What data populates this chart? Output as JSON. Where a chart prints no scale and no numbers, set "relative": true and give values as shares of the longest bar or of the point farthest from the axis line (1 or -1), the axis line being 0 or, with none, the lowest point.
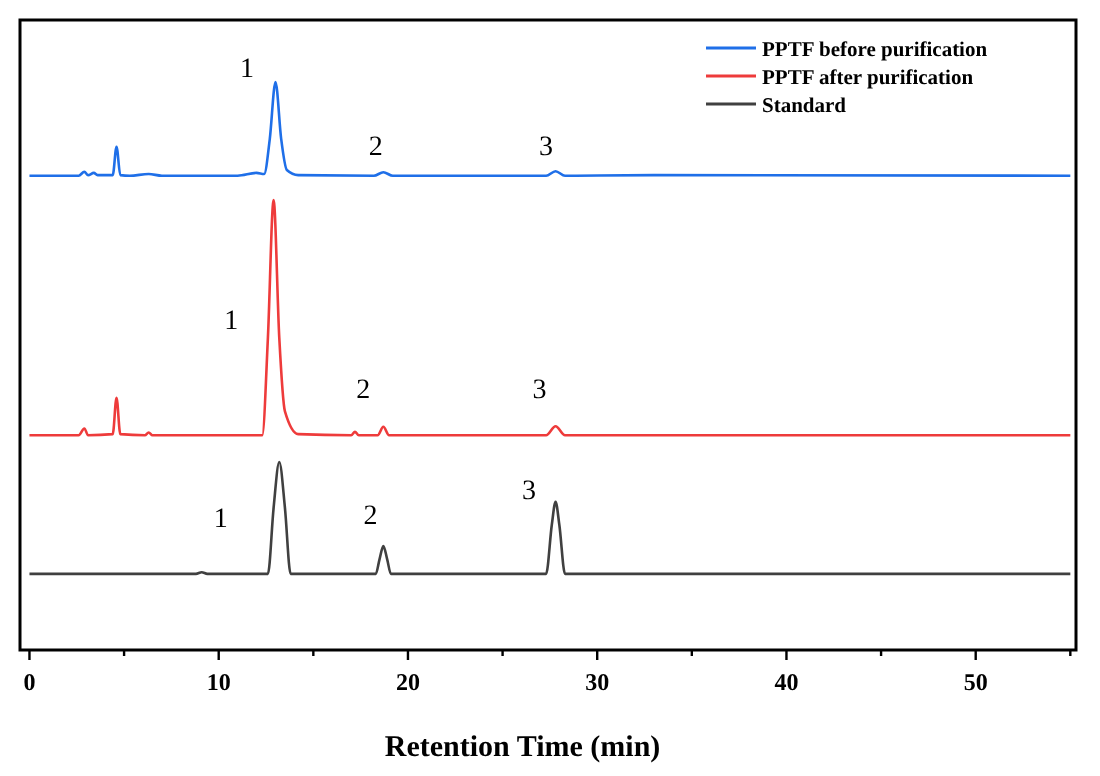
{
  "chart_data": {
    "type": "line",
    "relative": true,
    "xlabel": "Retention Time (min)",
    "xlim": [
      -0.5,
      55.3
    ],
    "xticks": [
      0,
      {
        "value": 5,
        "label": null
      },
      10,
      {
        "value": 15,
        "label": null
      },
      20,
      {
        "value": 25,
        "label": null
      },
      30,
      {
        "value": 35,
        "label": null
      },
      40,
      {
        "value": 45,
        "label": null
      },
      50,
      {
        "value": 55,
        "label": null
      }
    ],
    "tick_labels": "x",
    "legend": "top right",
    "grid": false,
    "marker": "none",
    "line_style": "solid",
    "series": [
      {
        "name": "PPTF before purification",
        "color": "#1f6fe8",
        "x": [
          0,
          2.6,
          2.9,
          3.1,
          3.4,
          3.6,
          3.9,
          4.4,
          4.6,
          4.8,
          5.3,
          6.3,
          7,
          11,
          12,
          12.4,
          12.7,
          13.0,
          13.3,
          13.6,
          14.2,
          18.2,
          18.7,
          19.2,
          22,
          27.3,
          27.8,
          28.3,
          33,
          55
        ],
        "values": [
          0.835,
          0.835,
          0.842,
          0.836,
          0.84,
          0.836,
          0.836,
          0.836,
          0.886,
          0.836,
          0.835,
          0.838,
          0.835,
          0.835,
          0.84,
          0.838,
          0.9,
          1.0,
          0.9,
          0.845,
          0.836,
          0.835,
          0.841,
          0.835,
          0.835,
          0.835,
          0.843,
          0.835,
          0.836,
          0.835
        ]
      },
      {
        "name": "PPTF after purification",
        "color": "#ee3b3b",
        "x": [
          0,
          2.6,
          2.9,
          3.1,
          4.4,
          4.6,
          4.8,
          6.1,
          6.3,
          6.5,
          12.3,
          12.6,
          12.9,
          13.2,
          13.5,
          14.2,
          17,
          17.2,
          17.4,
          18.4,
          18.7,
          19.0,
          27.3,
          27.8,
          28.3,
          55
        ],
        "values": [
          0.378,
          0.378,
          0.39,
          0.378,
          0.38,
          0.444,
          0.38,
          0.378,
          0.383,
          0.378,
          0.378,
          0.55,
          0.792,
          0.55,
          0.42,
          0.38,
          0.378,
          0.384,
          0.378,
          0.378,
          0.393,
          0.378,
          0.378,
          0.394,
          0.378,
          0.378
        ]
      },
      {
        "name": "Standard",
        "color": "#404040",
        "x": [
          0,
          8.8,
          9.1,
          9.4,
          12.6,
          12.9,
          13.2,
          13.5,
          13.8,
          18.3,
          18.5,
          18.7,
          18.9,
          19.1,
          27.3,
          27.6,
          27.8,
          28.0,
          28.3,
          55
        ],
        "values": [
          0.134,
          0.134,
          0.137,
          0.134,
          0.134,
          0.25,
          0.331,
          0.25,
          0.134,
          0.134,
          0.16,
          0.183,
          0.16,
          0.134,
          0.134,
          0.22,
          0.261,
          0.22,
          0.134,
          0.134
        ]
      }
    ],
    "annotations": [
      "1",
      "2",
      "3",
      "1",
      "2",
      "3",
      "1",
      "2",
      "3"
    ]
  }
}
